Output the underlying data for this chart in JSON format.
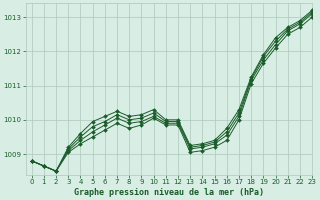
{
  "title": "Graphe pression niveau de la mer (hPa)",
  "bg_color": "#d8ede4",
  "grid_color": "#aec8bc",
  "line_color": "#1a5c2a",
  "xlim": [
    -0.5,
    23
  ],
  "ylim": [
    1008.4,
    1013.4
  ],
  "yticks": [
    1009,
    1010,
    1011,
    1012,
    1013
  ],
  "xticks": [
    0,
    1,
    2,
    3,
    4,
    5,
    6,
    7,
    8,
    9,
    10,
    11,
    12,
    13,
    14,
    15,
    16,
    17,
    18,
    19,
    20,
    21,
    22,
    23
  ],
  "series": [
    [
      1008.8,
      1008.65,
      1008.5,
      1009.05,
      1009.3,
      1009.5,
      1009.7,
      1009.9,
      1009.75,
      1009.85,
      1010.05,
      1009.85,
      1009.85,
      1009.05,
      1009.1,
      1009.2,
      1009.4,
      1010.0,
      1011.05,
      1011.65,
      1012.1,
      1012.5,
      1012.7,
      1013.0
    ],
    [
      1008.8,
      1008.65,
      1008.5,
      1009.1,
      1009.4,
      1009.65,
      1009.85,
      1010.05,
      1009.9,
      1009.95,
      1010.1,
      1009.9,
      1009.9,
      1009.15,
      1009.2,
      1009.3,
      1009.55,
      1010.1,
      1011.15,
      1011.75,
      1012.2,
      1012.6,
      1012.8,
      1013.1
    ],
    [
      1008.8,
      1008.65,
      1008.5,
      1009.15,
      1009.5,
      1009.8,
      1009.95,
      1010.15,
      1010.0,
      1010.05,
      1010.2,
      1009.95,
      1009.95,
      1009.2,
      1009.25,
      1009.35,
      1009.65,
      1010.2,
      1011.2,
      1011.85,
      1012.3,
      1012.65,
      1012.85,
      1013.15
    ],
    [
      1008.8,
      1008.65,
      1008.5,
      1009.2,
      1009.6,
      1009.95,
      1010.1,
      1010.25,
      1010.1,
      1010.15,
      1010.3,
      1010.0,
      1010.0,
      1009.25,
      1009.3,
      1009.4,
      1009.75,
      1010.3,
      1011.25,
      1011.9,
      1012.4,
      1012.7,
      1012.9,
      1013.2
    ]
  ],
  "title_fontsize": 6,
  "tick_fontsize": 5,
  "linewidth": 0.7,
  "markersize": 2.0
}
